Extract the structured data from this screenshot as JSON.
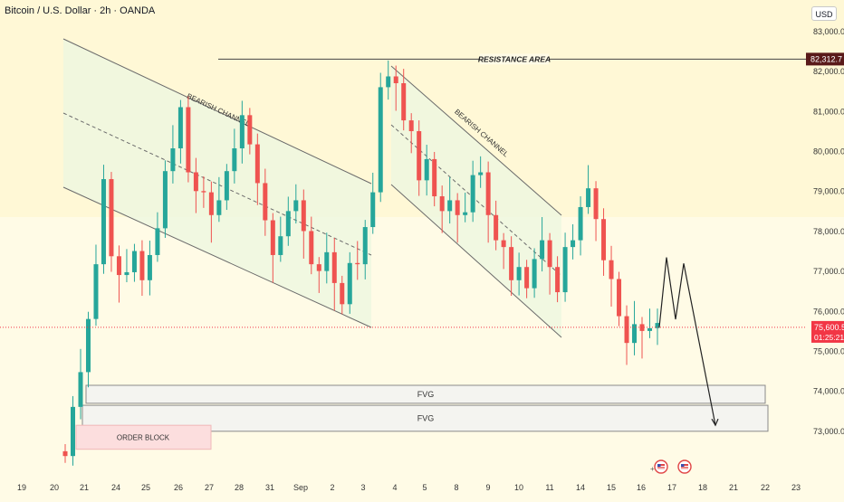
{
  "header": {
    "title": "Bitcoin / U.S. Dollar · 2h · OANDA",
    "currency_button": "USD"
  },
  "colors": {
    "background": "#fffbe6",
    "up_candle": "#26a69a",
    "down_candle": "#ef5350",
    "channel_fill": "#eef7df",
    "channel_line": "#6b6b6b",
    "resistance_line": "#444444",
    "resistance_label_bg": "#5a1a1a",
    "price_label_bg": "#f23645",
    "fvg_fill": "#f4f4f0",
    "order_block_fill": "#fcdede"
  },
  "chart_data": {
    "type": "candlestick",
    "symbol": "Bitcoin / U.S. Dollar",
    "timeframe": "2h",
    "source": "OANDA",
    "ylim": [
      72300,
      83600
    ],
    "y_ticks": [
      "83,000.0",
      "82,000.0",
      "81,000.0",
      "80,000.0",
      "79,000.0",
      "78,000.0",
      "77,000.0",
      "76,000.0",
      "75,000.0",
      "74,000.0",
      "73,000.0"
    ],
    "y_tick_values": [
      83000,
      82000,
      81000,
      80000,
      79000,
      78000,
      77000,
      76000,
      75000,
      74000,
      73000
    ],
    "x_ticks": [
      "19",
      "20",
      "21",
      "24",
      "25",
      "26",
      "27",
      "28",
      "31",
      "Sep",
      "2",
      "3",
      "4",
      "5",
      "8",
      "9",
      "10",
      "11",
      "14",
      "15",
      "16",
      "17",
      "18",
      "21",
      "22",
      "23"
    ],
    "current_price": "75,600.5",
    "countdown": "01:25:21",
    "current_price_value": 75600.5,
    "resistance": {
      "label": "RESISTANCE AREA",
      "value": 82312.7,
      "price_label": "82,312.7"
    },
    "annotations": {
      "channel1_label": "BEARISH CHANNEL",
      "channel2_label": "BEARISH CHANNEL",
      "fvg_upper_label": "FVG",
      "fvg_lower_label": "FVG",
      "order_block_label": "ORDER BLOCK"
    },
    "zones": {
      "fvg_upper": [
        73700,
        74150
      ],
      "fvg_lower": [
        73000,
        73650
      ],
      "order_block": [
        72550,
        73150
      ]
    },
    "projection_path": [
      75600,
      77350,
      75800,
      77200,
      73150
    ],
    "candles": [
      [
        72500,
        72500,
        72500,
        72500
      ],
      [
        73500,
        73400,
        73600,
        73300
      ],
      [
        74600,
        74500,
        74700,
        74400
      ],
      [
        75700,
        75600,
        75800,
        75500
      ],
      [
        77300,
        77200,
        77400,
        77100
      ],
      [
        79200,
        79100,
        79300,
        79000
      ],
      [
        77500,
        77400,
        77600,
        77300
      ],
      [
        76800,
        76700,
        76900,
        76600
      ],
      [
        77100,
        77000,
        77200,
        76900
      ],
      [
        77400,
        77300,
        77500,
        77200
      ],
      [
        76900,
        76800,
        77000,
        76700
      ],
      [
        77300,
        77200,
        77400,
        77100
      ],
      [
        78200,
        78100,
        78300,
        78000
      ],
      [
        79400,
        79300,
        79500,
        79200
      ],
      [
        80200,
        80100,
        80300,
        80000
      ],
      [
        81000,
        80900,
        81100,
        80800
      ],
      [
        79600,
        79500,
        79700,
        79400
      ],
      [
        78900,
        78800,
        79000,
        78700
      ],
      [
        79100,
        79000,
        79200,
        78900
      ],
      [
        78300,
        78200,
        78400,
        78100
      ],
      [
        78900,
        78800,
        79000,
        78700
      ],
      [
        79400,
        79300,
        79500,
        79200
      ],
      [
        80200,
        80100,
        80300,
        80000
      ],
      [
        80800,
        80700,
        80900,
        80600
      ],
      [
        80300,
        80200,
        80400,
        80100
      ],
      [
        79100,
        79000,
        79200,
        78900
      ],
      [
        78400,
        78300,
        78500,
        78200
      ],
      [
        77300,
        77200,
        77400,
        77100
      ],
      [
        78000,
        77900,
        78100,
        77800
      ],
      [
        78400,
        78300,
        78500,
        78200
      ],
      [
        78900,
        78800,
        79000,
        78700
      ],
      [
        77900,
        77800,
        78000,
        77700
      ],
      [
        77300,
        77200,
        77400,
        77100
      ],
      [
        76900,
        76800,
        77000,
        76700
      ],
      [
        77600,
        77500,
        77700,
        77400
      ],
      [
        76600,
        76500,
        76700,
        76400
      ],
      [
        76300,
        76200,
        76400,
        76100
      ],
      [
        77100,
        77000,
        77200,
        76900
      ],
      [
        77300,
        77200,
        77400,
        77100
      ],
      [
        78000,
        77900,
        78100,
        77800
      ],
      [
        79100,
        79000,
        79200,
        78900
      ],
      [
        81500,
        81400,
        81600,
        81300
      ],
      [
        82000,
        81900,
        82100,
        81800
      ],
      [
        81600,
        81500,
        81700,
        81400
      ],
      [
        80900,
        80800,
        81000,
        80700
      ],
      [
        80400,
        80300,
        80500,
        80200
      ],
      [
        79400,
        79300,
        79500,
        79200
      ],
      [
        79700,
        79600,
        79800,
        79500
      ],
      [
        79000,
        78900,
        79100,
        78800
      ],
      [
        78400,
        78300,
        78500,
        78200
      ],
      [
        78900,
        78800,
        79000,
        78700
      ],
      [
        78300,
        78200,
        78400,
        78100
      ],
      [
        78600,
        78500,
        78700,
        78400
      ],
      [
        79300,
        79200,
        79400,
        79100
      ],
      [
        79600,
        79500,
        79700,
        79400
      ],
      [
        78300,
        78200,
        78400,
        78100
      ],
      [
        77900,
        77800,
        78000,
        77700
      ],
      [
        77500,
        77400,
        77600,
        77300
      ],
      [
        76900,
        76800,
        77000,
        76700
      ],
      [
        77000,
        76900,
        77100,
        76800
      ],
      [
        76700,
        76600,
        76800,
        76500
      ],
      [
        77200,
        77100,
        77300,
        77000
      ],
      [
        77900,
        77800,
        78000,
        77700
      ],
      [
        77000,
        76900,
        77100,
        76800
      ],
      [
        76600,
        76500,
        76700,
        76400
      ],
      [
        77500,
        77400,
        77600,
        77300
      ],
      [
        77900,
        77800,
        78000,
        77700
      ],
      [
        78500,
        78400,
        78600,
        78300
      ],
      [
        79200,
        79100,
        79300,
        79000
      ],
      [
        78200,
        78100,
        78300,
        78000
      ],
      [
        77400,
        77300,
        77500,
        77200
      ],
      [
        76700,
        76600,
        76800,
        76500
      ],
      [
        76000,
        75900,
        76100,
        75800
      ],
      [
        75100,
        75000,
        75200,
        74900
      ],
      [
        75800,
        75700,
        75900,
        75600
      ],
      [
        75400,
        75300,
        75500,
        75200
      ],
      [
        75700,
        75600,
        75800,
        75500
      ],
      [
        75600,
        75500,
        75700,
        75400
      ]
    ]
  }
}
